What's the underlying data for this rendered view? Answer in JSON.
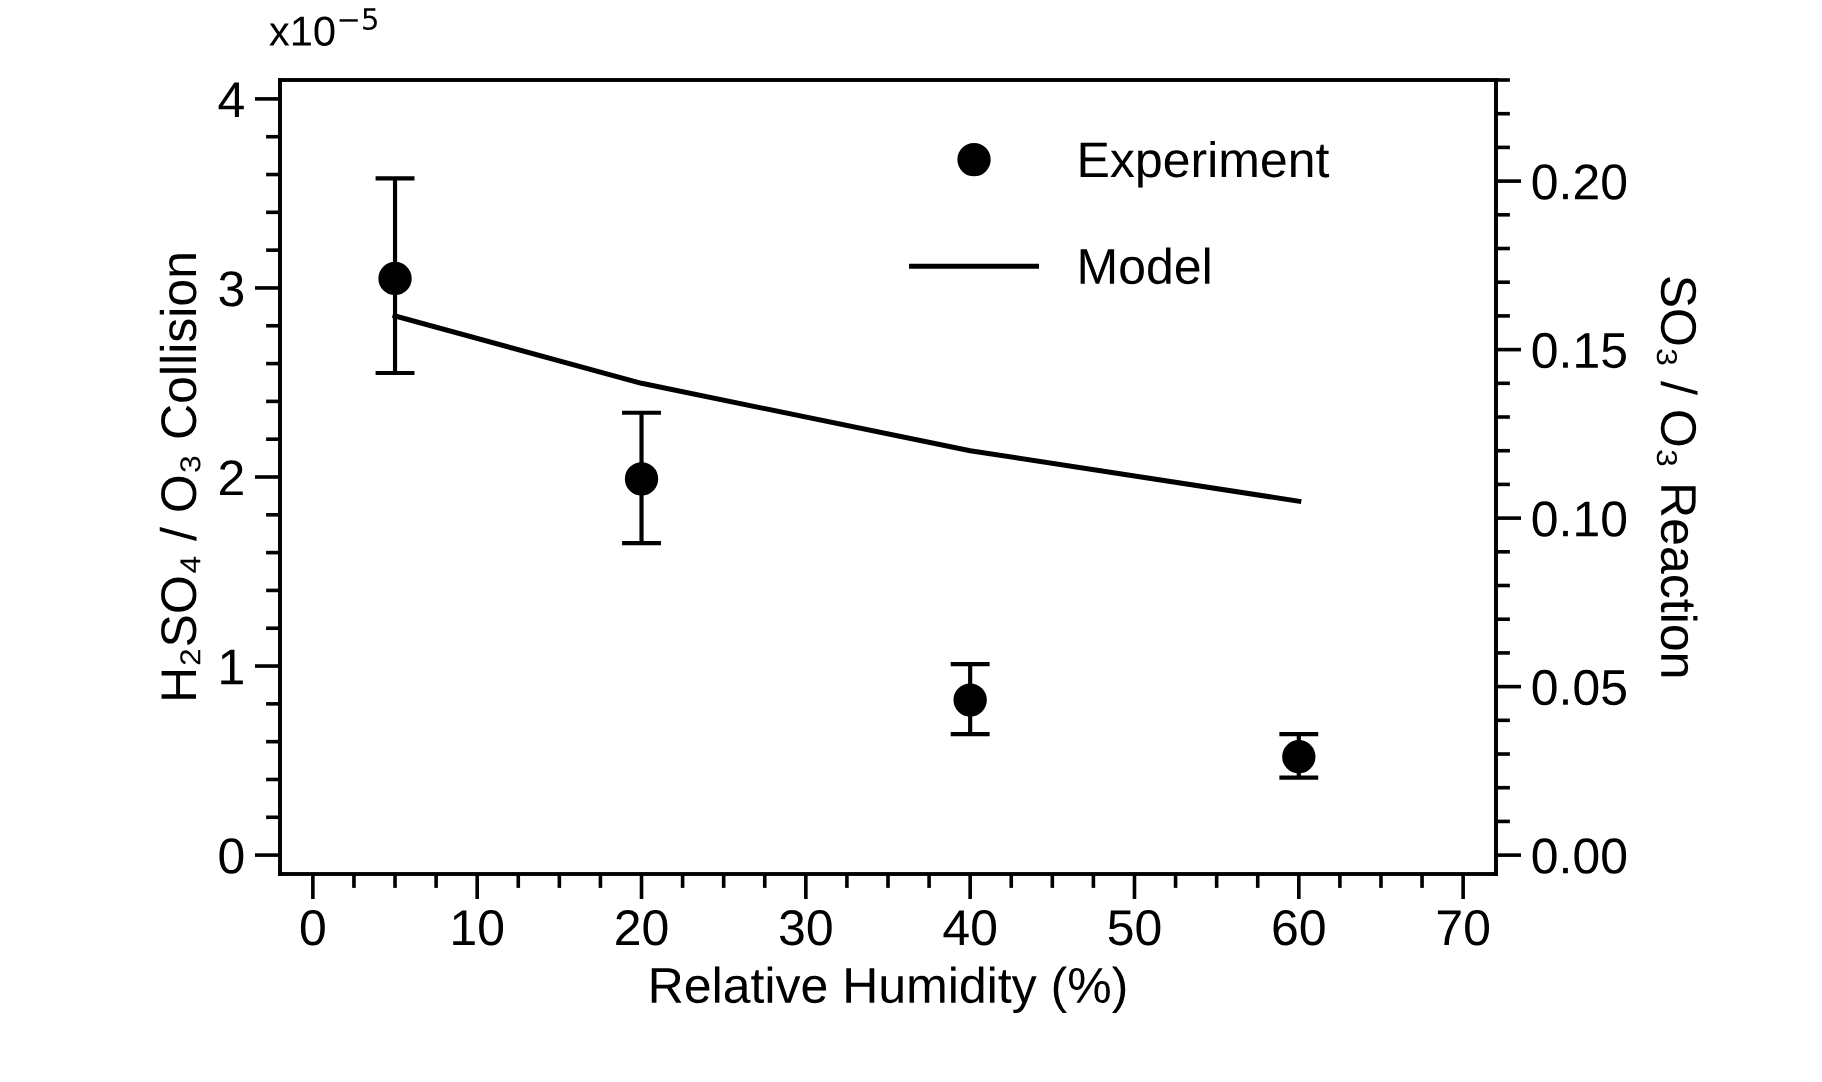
{
  "chart_data": {
    "type": "scatter",
    "xlabel": "Relative Humidity (%)",
    "ylabel": "H₂SO₄ / O₃ Collision",
    "y2label": "SO₃ / O₃ Reaction",
    "x": [
      5,
      20,
      40,
      60
    ],
    "series": [
      {
        "name": "Experiment",
        "color": "#000000",
        "marker": "circle",
        "values": [
          3.05,
          1.99,
          0.82,
          0.52
        ],
        "errors": [
          [
            2.55,
            3.58
          ],
          [
            1.65,
            2.34
          ],
          [
            0.64,
            1.01
          ],
          [
            0.41,
            0.64
          ]
        ]
      },
      {
        "name": "Model",
        "type": "line",
        "color": "#000000",
        "axis": "y2",
        "marker": "none",
        "line_style": "solid",
        "values": [
          0.16,
          0.14,
          0.12,
          0.105
        ]
      }
    ],
    "xlim": [
      -2,
      72
    ],
    "xticks": [
      0,
      10,
      20,
      30,
      40,
      50,
      60,
      70
    ],
    "ylim": [
      -0.1,
      4.1
    ],
    "yticks": [
      0,
      1,
      2,
      3,
      4
    ],
    "annotations": [
      "x10$^{−5}$"
    ],
    "y2lim": [
      -0.0056,
      0.23
    ],
    "y2ticks": [
      {
        "value": 0,
        "label": "0.00"
      },
      {
        "value": 0.05,
        "label": "0.05"
      },
      {
        "value": 0.1,
        "label": "0.10"
      },
      {
        "value": 0.15,
        "label": "0.15"
      },
      {
        "value": 0.2,
        "label": "0.20"
      }
    ],
    "grid": false,
    "legend": "top right"
  }
}
